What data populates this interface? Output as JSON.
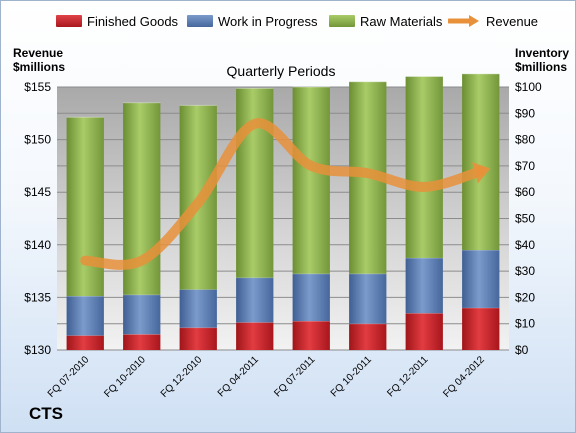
{
  "chart_data": {
    "type": "bar",
    "stacked": true,
    "title": "Quarterly Periods",
    "categories": [
      "FQ 07-2010",
      "FQ 10-2010",
      "FQ 12-2010",
      "FQ 04-2011",
      "FQ 07-2011",
      "FQ 10-2011",
      "FQ 12-2011",
      "FQ 04-2012"
    ],
    "series": [
      {
        "name": "Finished Goods",
        "axis": "right",
        "color": "#c0272d",
        "values": [
          5.5,
          6,
          8.5,
          10.5,
          11,
          10,
          14,
          16
        ]
      },
      {
        "name": "Work in Progress",
        "axis": "right",
        "color": "#5b7fb4",
        "values": [
          15,
          15,
          14.5,
          17,
          18,
          19,
          21,
          22
        ]
      },
      {
        "name": "Raw Materials",
        "axis": "right",
        "color": "#8cb24a",
        "values": [
          68,
          73,
          70,
          72,
          71,
          73,
          69,
          67
        ]
      },
      {
        "name": "Revenue",
        "axis": "left",
        "type": "line",
        "color": "#e8913a",
        "values": [
          138.5,
          138.5,
          144,
          151.5,
          147.5,
          146.8,
          145.5,
          147
        ]
      }
    ],
    "y_left": {
      "title_line1": "Revenue",
      "title_line2": "$millions",
      "range": [
        130,
        155
      ],
      "ticks": [
        "$130",
        "$135",
        "$140",
        "$145",
        "$150",
        "$155"
      ]
    },
    "y_right": {
      "title_line1": "Inventory",
      "title_line2": "$millions",
      "range": [
        0,
        100
      ],
      "ticks": [
        "$0",
        "$10",
        "$20",
        "$30",
        "$40",
        "$50",
        "$60",
        "$70",
        "$80",
        "$90",
        "$100"
      ]
    },
    "grid": true,
    "legend_position": "top"
  },
  "brand": "CTS"
}
